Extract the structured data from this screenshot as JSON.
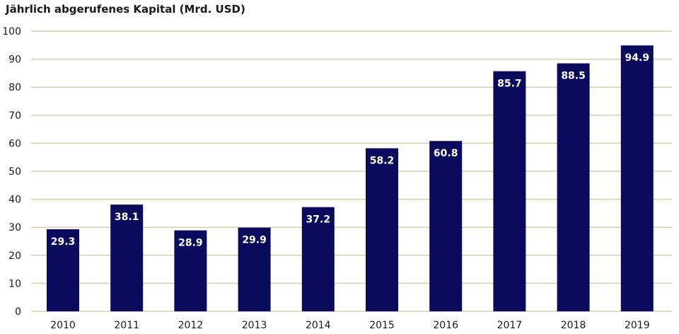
{
  "chart_data": {
    "type": "bar",
    "title": "Jährlich abgerufenes Kapital (Mrd. USD)",
    "categories": [
      "2010",
      "2011",
      "2012",
      "2013",
      "2014",
      "2015",
      "2016",
      "2017",
      "2018",
      "2019"
    ],
    "values": [
      29.3,
      38.1,
      28.9,
      29.9,
      37.2,
      58.2,
      60.8,
      85.7,
      88.5,
      94.9
    ],
    "value_labels": [
      "29.3",
      "38.1",
      "28.9",
      "29.9",
      "37.2",
      "58.2",
      "60.8",
      "85.7",
      "88.5",
      "94.9"
    ],
    "yticks": [
      "0",
      "10",
      "20",
      "30",
      "40",
      "50",
      "60",
      "70",
      "80",
      "90",
      "100"
    ],
    "ylim": [
      0,
      100
    ],
    "grid": true,
    "legend": "none",
    "bar_color": "#0b0b5e",
    "grid_color": "#d9cfae"
  }
}
